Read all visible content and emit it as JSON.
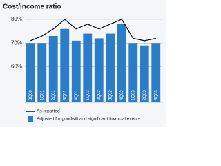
{
  "chart_data": {
    "type": "bar",
    "title": "Cost/income ratio",
    "categories": [
      "3Q00",
      "1Q01",
      "2Q01",
      "3Q01",
      "4Q01",
      "1Q02",
      "2Q02",
      "3Q02",
      "4Q02",
      "1Q03",
      "2Q03",
      "3Q03"
    ],
    "series": [
      {
        "name": "Adjusted for goodwill and significant financial events",
        "color": "#2a7dc6",
        "type": "bar",
        "values": [
          70,
          70,
          73,
          76,
          71,
          74,
          72,
          74,
          78,
          70,
          69,
          70
        ]
      },
      {
        "name": "As reported",
        "color": "#000000",
        "type": "line",
        "values": [
          71,
          73,
          76,
          80,
          76,
          78,
          76,
          78,
          80,
          72,
          71,
          72
        ]
      }
    ],
    "ylim": [
      45,
      80
    ],
    "yticks": [
      {
        "value": 60,
        "label": "60%"
      },
      {
        "value": 70,
        "label": "70%"
      },
      {
        "value": 80,
        "label": "80%"
      }
    ],
    "grid": true
  }
}
